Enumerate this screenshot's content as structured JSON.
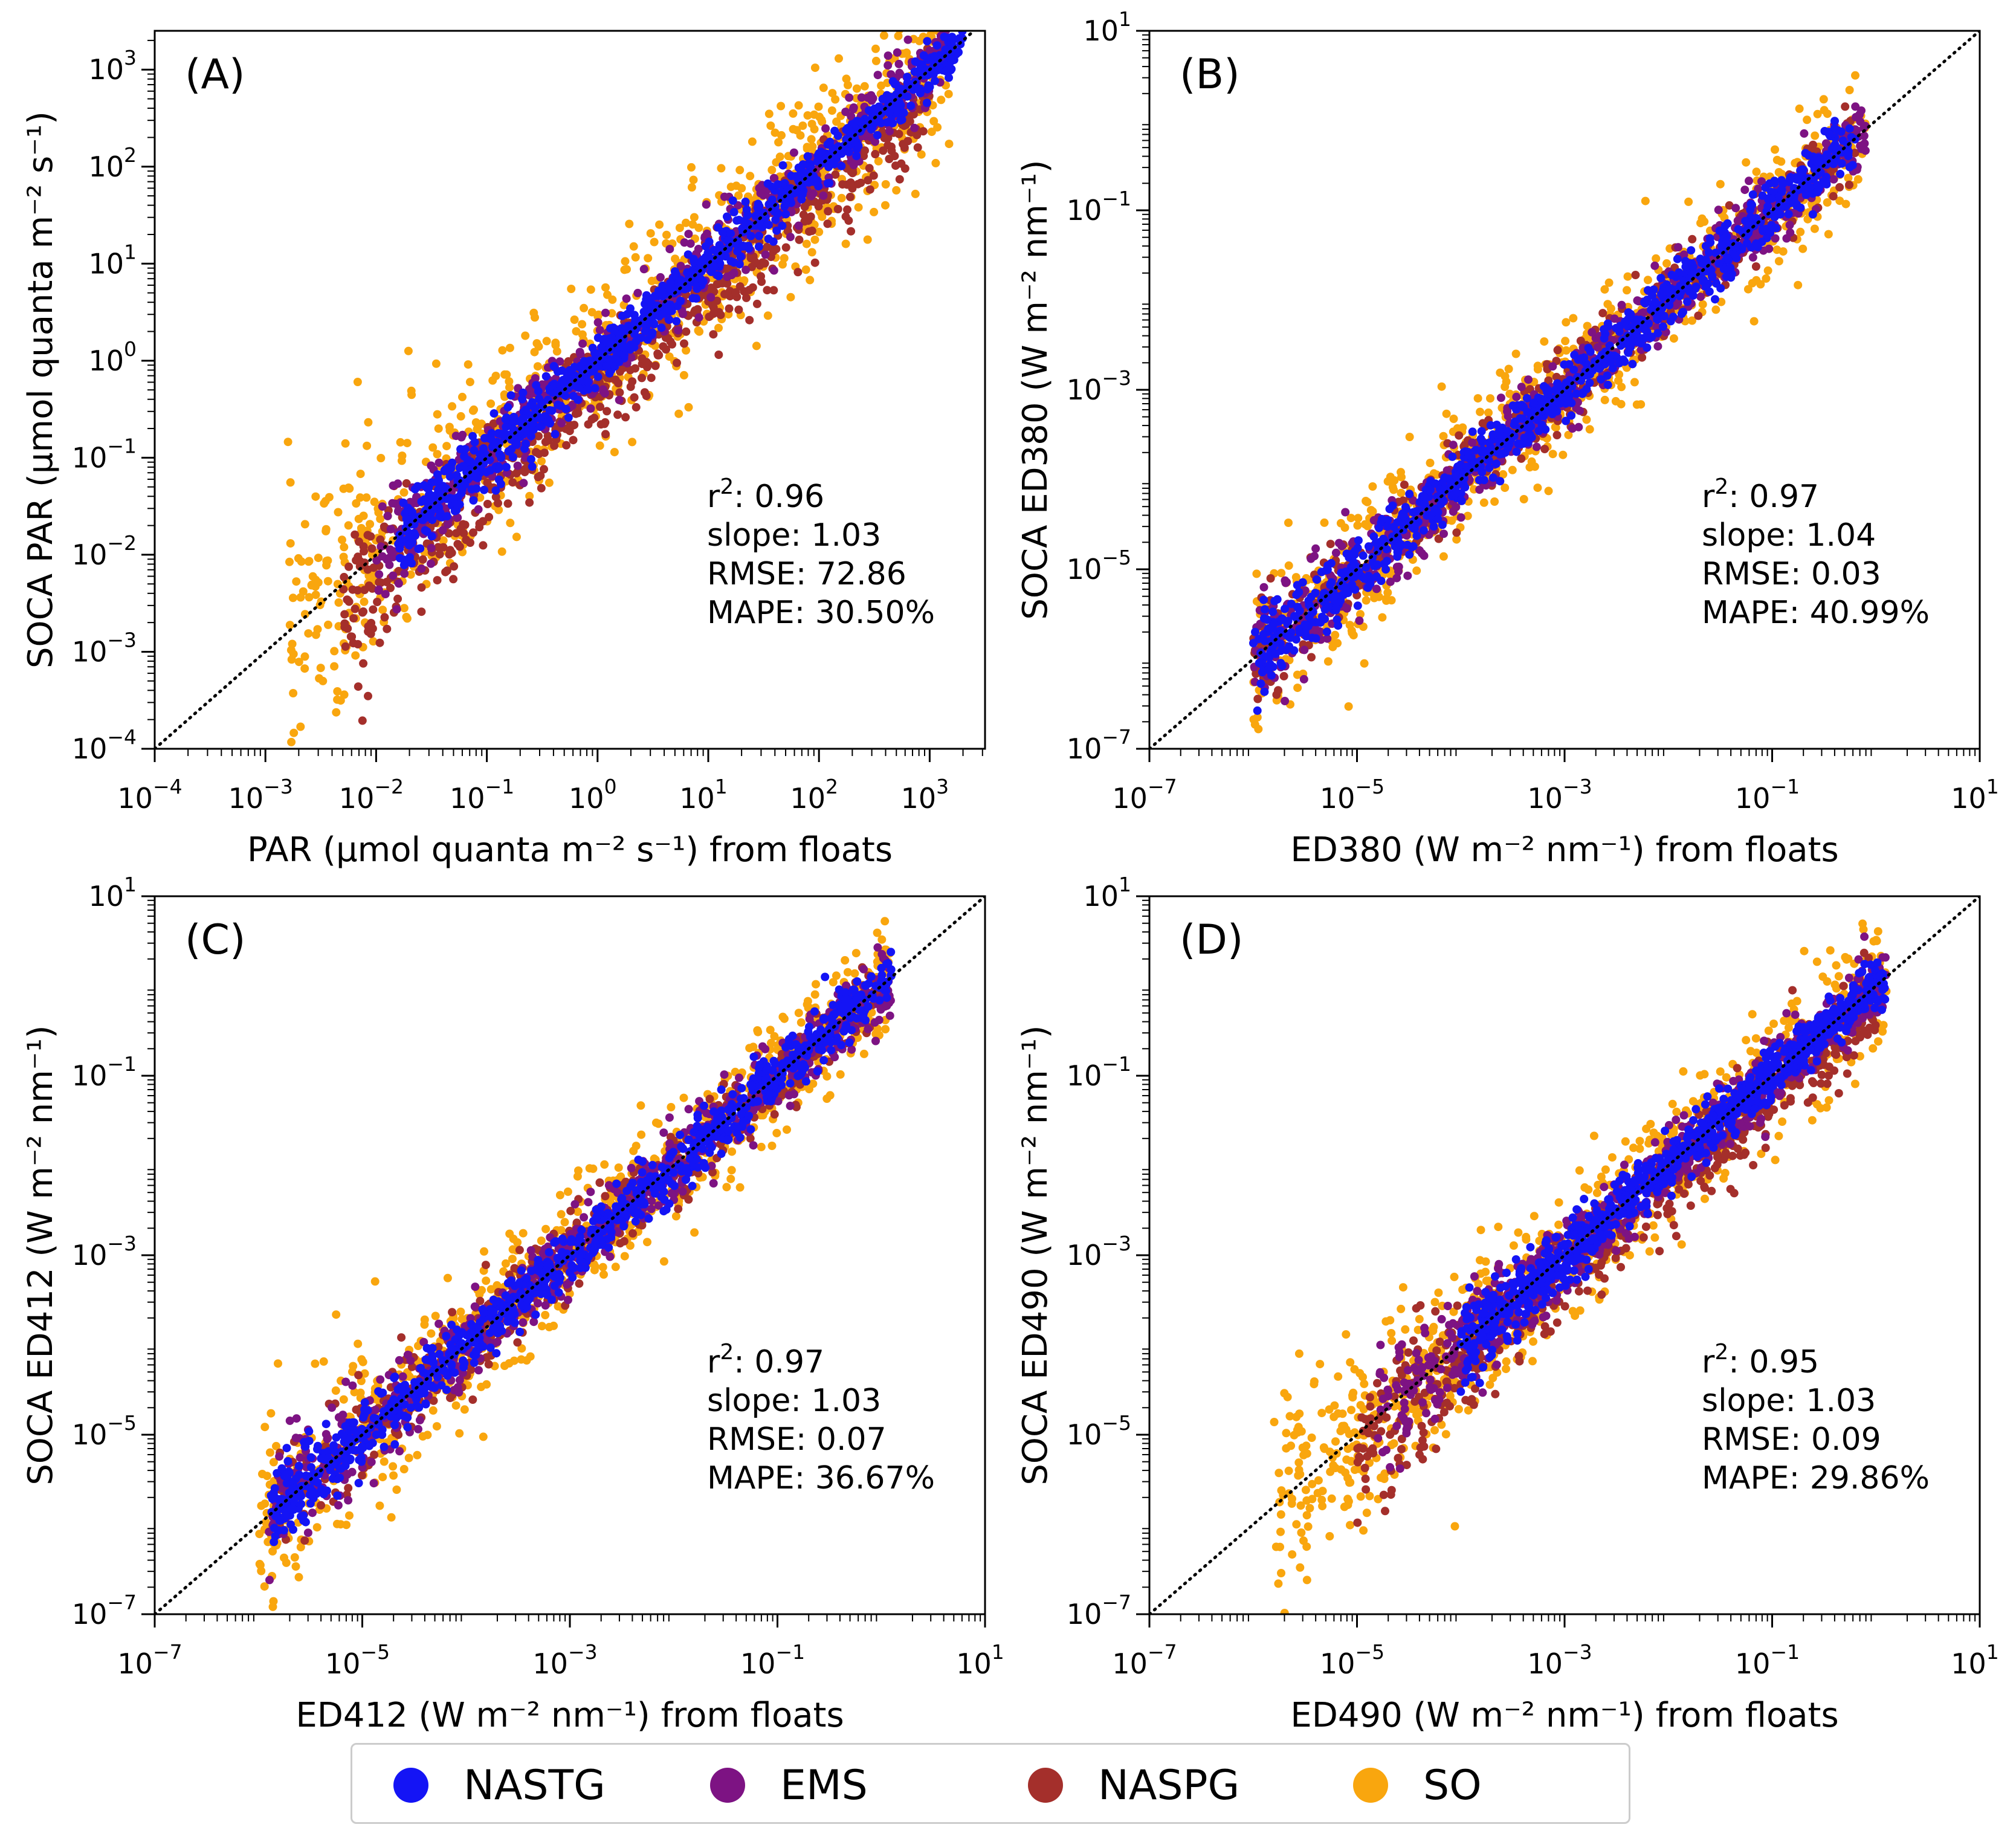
{
  "colors": {
    "NASTG": "#1414f5",
    "EMS": "#7d1383",
    "NASPG": "#a42f2b",
    "SO": "#f9a60e"
  },
  "legend": [
    {
      "key": "NASTG",
      "label": "NASTG"
    },
    {
      "key": "EMS",
      "label": "EMS"
    },
    {
      "key": "NASPG",
      "label": "NASPG"
    },
    {
      "key": "SO",
      "label": "SO"
    }
  ],
  "chart_data": [
    {
      "type": "scatter",
      "panel_label": "(A)",
      "xlabel": "PAR (μmol quanta m⁻² s⁻¹) from floats",
      "ylabel": "SOCA PAR (μmol quanta m⁻² s⁻¹)",
      "xlim_log10": [
        -4,
        3.5
      ],
      "ylim_log10": [
        -4,
        3.4
      ],
      "xticks": [
        {
          "exp": -4,
          "label": "−4"
        },
        {
          "exp": -3,
          "label": "−3"
        },
        {
          "exp": -2,
          "label": "−2"
        },
        {
          "exp": -1,
          "label": "−1"
        },
        {
          "exp": 0,
          "label": "0"
        },
        {
          "exp": 1,
          "label": "1"
        },
        {
          "exp": 2,
          "label": "2"
        },
        {
          "exp": 3,
          "label": "3"
        }
      ],
      "yticks": [
        {
          "exp": -4,
          "label": "−4"
        },
        {
          "exp": -3,
          "label": "−3"
        },
        {
          "exp": -2,
          "label": "−2"
        },
        {
          "exp": -1,
          "label": "−1"
        },
        {
          "exp": 0,
          "label": "0"
        },
        {
          "exp": 1,
          "label": "1"
        },
        {
          "exp": 2,
          "label": "2"
        },
        {
          "exp": 3,
          "label": "3"
        }
      ],
      "one_to_one_line": true,
      "stats": {
        "r2": "0.96",
        "slope": "1.03",
        "rmse": "72.86",
        "mape": "30.50%"
      },
      "series": [
        {
          "name": "SO",
          "log_x_range": [
            -2.8,
            3.2
          ],
          "log_y_offset_sigma": 0.45,
          "approx_points": 900
        },
        {
          "name": "NASPG",
          "log_x_range": [
            -2.3,
            3.0
          ],
          "log_y_offset_mean": -0.3,
          "log_y_offset_sigma": 0.25,
          "approx_points": 700
        },
        {
          "name": "EMS",
          "log_x_range": [
            -2.0,
            3.2
          ],
          "log_y_offset_sigma": 0.2,
          "approx_points": 600
        },
        {
          "name": "NASTG",
          "log_x_range": [
            -1.8,
            3.3
          ],
          "log_y_offset_sigma": 0.12,
          "approx_points": 900
        }
      ]
    },
    {
      "type": "scatter",
      "panel_label": "(B)",
      "xlabel": "ED380 (W m⁻² nm⁻¹) from floats",
      "ylabel": "SOCA ED380 (W m⁻² nm⁻¹)",
      "xlim_log10": [
        -7,
        1
      ],
      "ylim_log10": [
        -7,
        1
      ],
      "xticks": [
        {
          "exp": -7,
          "label": "−7"
        },
        {
          "exp": -5,
          "label": "−5"
        },
        {
          "exp": -3,
          "label": "−3"
        },
        {
          "exp": -1,
          "label": "−1"
        },
        {
          "exp": 1,
          "label": "1"
        }
      ],
      "yticks": [
        {
          "exp": -7,
          "label": "−7"
        },
        {
          "exp": -5,
          "label": "−5"
        },
        {
          "exp": -3,
          "label": "−3"
        },
        {
          "exp": -1,
          "label": "−1"
        },
        {
          "exp": 1,
          "label": "1"
        }
      ],
      "one_to_one_line": true,
      "stats": {
        "r2": "0.97",
        "slope": "1.04",
        "rmse": "0.03",
        "mape": "40.99%"
      },
      "series": [
        {
          "name": "SO",
          "log_x_range": [
            -6.0,
            -0.1
          ],
          "log_y_offset_sigma": 0.35,
          "approx_points": 800
        },
        {
          "name": "NASPG",
          "log_x_range": [
            -6.0,
            -0.2
          ],
          "log_y_offset_sigma": 0.2,
          "approx_points": 500
        },
        {
          "name": "EMS",
          "log_x_range": [
            -6.0,
            -0.1
          ],
          "log_y_offset_sigma": 0.2,
          "approx_points": 600
        },
        {
          "name": "NASTG",
          "log_x_range": [
            -6.0,
            -0.2
          ],
          "log_y_offset_sigma": 0.15,
          "approx_points": 900
        }
      ]
    },
    {
      "type": "scatter",
      "panel_label": "(C)",
      "xlabel": "ED412 (W m⁻² nm⁻¹) from floats",
      "ylabel": "SOCA ED412 (W m⁻² nm⁻¹)",
      "xlim_log10": [
        -7,
        1
      ],
      "ylim_log10": [
        -7,
        1
      ],
      "xticks": [
        {
          "exp": -7,
          "label": "−7"
        },
        {
          "exp": -5,
          "label": "−5"
        },
        {
          "exp": -3,
          "label": "−3"
        },
        {
          "exp": -1,
          "label": "−1"
        },
        {
          "exp": 1,
          "label": "1"
        }
      ],
      "yticks": [
        {
          "exp": -7,
          "label": "−7"
        },
        {
          "exp": -5,
          "label": "−5"
        },
        {
          "exp": -3,
          "label": "−3"
        },
        {
          "exp": -1,
          "label": "−1"
        },
        {
          "exp": 1,
          "label": "1"
        }
      ],
      "one_to_one_line": true,
      "stats": {
        "r2": "0.97",
        "slope": "1.03",
        "rmse": "0.07",
        "mape": "36.67%"
      },
      "series": [
        {
          "name": "SO",
          "log_x_range": [
            -6.0,
            0.1
          ],
          "log_y_offset_sigma": 0.35,
          "approx_points": 800
        },
        {
          "name": "NASPG",
          "log_x_range": [
            -5.8,
            0.0
          ],
          "log_y_offset_sigma": 0.22,
          "approx_points": 500
        },
        {
          "name": "EMS",
          "log_x_range": [
            -5.9,
            0.1
          ],
          "log_y_offset_sigma": 0.2,
          "approx_points": 600
        },
        {
          "name": "NASTG",
          "log_x_range": [
            -5.9,
            0.1
          ],
          "log_y_offset_sigma": 0.15,
          "approx_points": 900
        }
      ]
    },
    {
      "type": "scatter",
      "panel_label": "(D)",
      "xlabel": "ED490 (W m⁻² nm⁻¹) from floats",
      "ylabel": "SOCA ED490 (W m⁻² nm⁻¹)",
      "xlim_log10": [
        -7,
        1
      ],
      "ylim_log10": [
        -7,
        1
      ],
      "xticks": [
        {
          "exp": -7,
          "label": "−7"
        },
        {
          "exp": -5,
          "label": "−5"
        },
        {
          "exp": -3,
          "label": "−3"
        },
        {
          "exp": -1,
          "label": "−1"
        },
        {
          "exp": 1,
          "label": "1"
        }
      ],
      "yticks": [
        {
          "exp": -7,
          "label": "−7"
        },
        {
          "exp": -5,
          "label": "−5"
        },
        {
          "exp": -3,
          "label": "−3"
        },
        {
          "exp": -1,
          "label": "−1"
        },
        {
          "exp": 1,
          "label": "1"
        }
      ],
      "one_to_one_line": true,
      "stats": {
        "r2": "0.95",
        "slope": "1.03",
        "rmse": "0.09",
        "mape": "29.86%"
      },
      "series": [
        {
          "name": "SO",
          "log_x_range": [
            -5.8,
            0.1
          ],
          "log_y_offset_sigma": 0.38,
          "approx_points": 800
        },
        {
          "name": "NASPG",
          "log_x_range": [
            -5.0,
            0.0
          ],
          "log_y_offset_mean": -0.2,
          "log_y_offset_sigma": 0.25,
          "approx_points": 600
        },
        {
          "name": "EMS",
          "log_x_range": [
            -4.8,
            0.1
          ],
          "log_y_offset_sigma": 0.2,
          "approx_points": 600
        },
        {
          "name": "NASTG",
          "log_x_range": [
            -4.0,
            0.1
          ],
          "log_y_offset_sigma": 0.13,
          "approx_points": 900
        }
      ]
    }
  ]
}
